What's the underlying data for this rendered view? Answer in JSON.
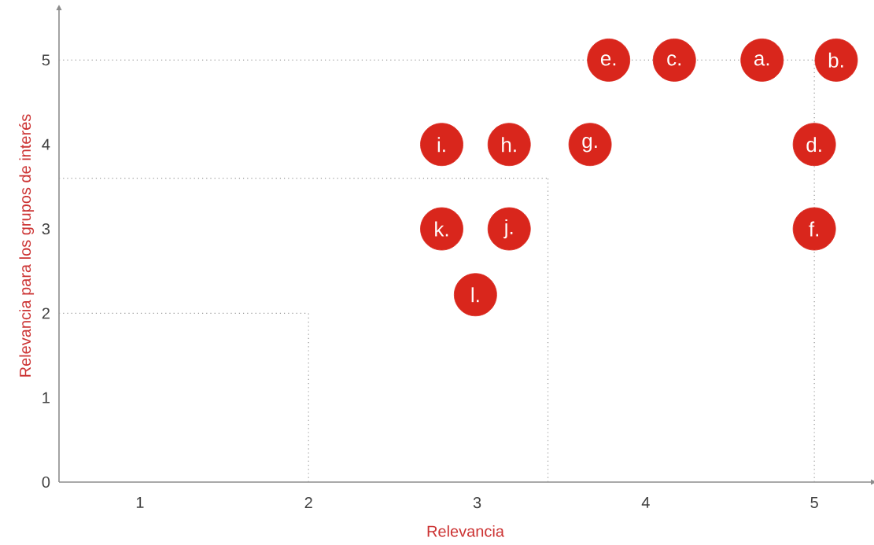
{
  "chart_data": {
    "type": "scatter",
    "xlabel": "Relevancia",
    "ylabel": "Relevancia para los grupos de interés",
    "xlim": [
      0.52,
      5.34
    ],
    "ylim": [
      0,
      5.6
    ],
    "xticks": [
      1,
      2,
      3,
      4,
      5
    ],
    "yticks": [
      0,
      1,
      2,
      3,
      4,
      5
    ],
    "grid": false,
    "marker": "circle",
    "series": [
      {
        "color": "#d9261c",
        "x": [
          3.78,
          4.17,
          4.69,
          5.13,
          2.79,
          3.19,
          3.67,
          5.0,
          2.79,
          3.19,
          5.0,
          2.99
        ],
        "values": [
          5,
          5,
          5,
          5,
          4,
          4,
          4,
          4,
          3,
          3,
          3,
          2.22
        ]
      }
    ],
    "annotations": [
      {
        "text": "e.",
        "x": 3.78,
        "y": 5
      },
      {
        "text": "c.",
        "x": 4.17,
        "y": 5
      },
      {
        "text": "a.",
        "x": 4.69,
        "y": 5
      },
      {
        "text": "b.",
        "x": 5.13,
        "y": 5
      },
      {
        "text": "i.",
        "x": 2.79,
        "y": 4
      },
      {
        "text": "h.",
        "x": 3.19,
        "y": 4
      },
      {
        "text": "g.",
        "x": 3.67,
        "y": 4
      },
      {
        "text": "d.",
        "x": 5.0,
        "y": 4
      },
      {
        "text": "k.",
        "x": 2.79,
        "y": 3
      },
      {
        "text": "j.",
        "x": 3.19,
        "y": 3
      },
      {
        "text": "f.",
        "x": 5.0,
        "y": 3
      },
      {
        "text": "l.",
        "x": 2.99,
        "y": 2.22
      }
    ],
    "ref_lines": [
      {
        "axis": "y",
        "value": 5,
        "color": "#999999",
        "line_style": "dotted"
      },
      {
        "axis": "y",
        "value": 3.6,
        "color": "#999999",
        "line_style": "dotted"
      },
      {
        "axis": "y",
        "value": 2,
        "color": "#999999",
        "line_style": "dotted"
      },
      {
        "axis": "x",
        "value": 5,
        "color": "#999999",
        "line_style": "dotted"
      },
      {
        "axis": "x",
        "value": 3.42,
        "color": "#999999",
        "line_style": "dotted"
      },
      {
        "axis": "x",
        "value": 2,
        "color": "#999999",
        "line_style": "dotted"
      }
    ]
  }
}
